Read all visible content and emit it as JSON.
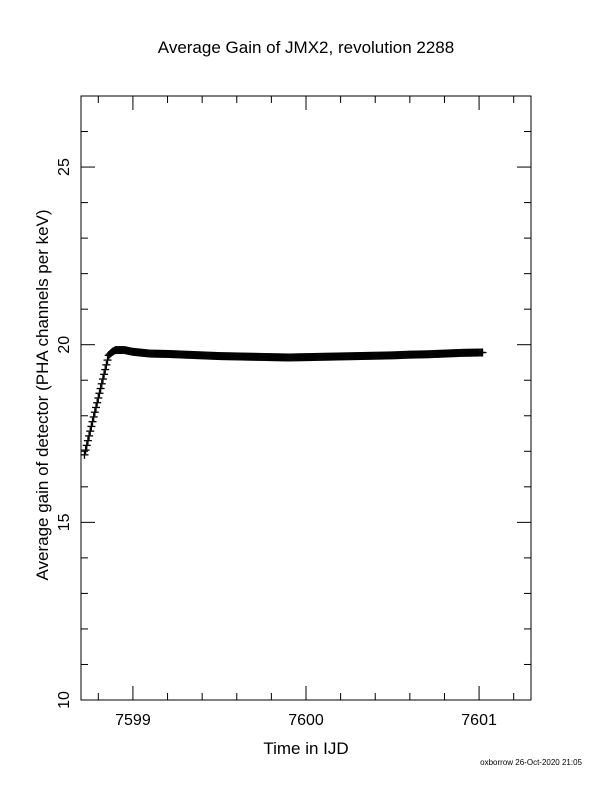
{
  "chart_data": {
    "type": "scatter",
    "title": "Average Gain of JMX2, revolution 2288",
    "xlabel": "Time in IJD",
    "ylabel": "Average gain of detector (PHA channels per keV)",
    "xlim": [
      7598.7,
      7601.3
    ],
    "ylim": [
      10,
      27
    ],
    "x_ticks": [
      7599,
      7600,
      7601
    ],
    "x_tick_labels": [
      "7599",
      "7600",
      "7601"
    ],
    "y_ticks": [
      10,
      15,
      20,
      25
    ],
    "y_tick_labels": [
      "10",
      "15",
      "20",
      "25"
    ],
    "marker": "+",
    "grid": false,
    "series": [
      {
        "color": "#000000",
        "x": [
          7598.72,
          7598.74,
          7598.76,
          7598.78,
          7598.8,
          7598.82,
          7598.84,
          7598.86,
          7598.88,
          7598.9,
          7598.95,
          7599.0,
          7599.1,
          7599.2,
          7599.3,
          7599.4,
          7599.5,
          7599.6,
          7599.7,
          7599.8,
          7599.9,
          7600.0,
          7600.1,
          7600.2,
          7600.3,
          7600.4,
          7600.5,
          7600.6,
          7600.7,
          7600.8,
          7600.9,
          7601.0,
          7601.02
        ],
        "y": [
          16.9,
          17.3,
          17.7,
          18.1,
          18.5,
          18.9,
          19.3,
          19.7,
          19.8,
          19.85,
          19.85,
          19.8,
          19.75,
          19.74,
          19.72,
          19.7,
          19.68,
          19.67,
          19.66,
          19.65,
          19.64,
          19.65,
          19.66,
          19.67,
          19.68,
          19.69,
          19.7,
          19.72,
          19.73,
          19.75,
          19.77,
          19.78,
          19.78
        ]
      }
    ]
  },
  "footer": {
    "credit": "oxborrow 26-Oct-2020 21:05"
  }
}
